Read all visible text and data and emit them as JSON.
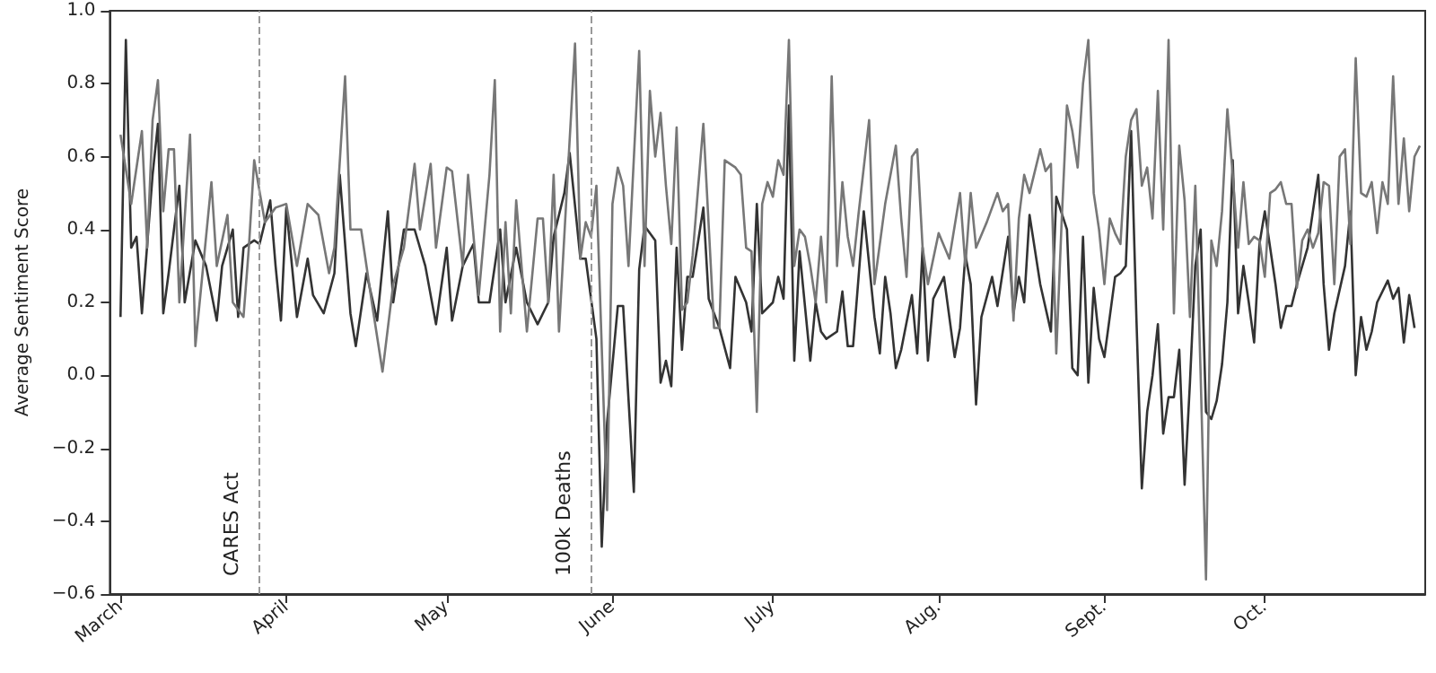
{
  "chart_data": {
    "type": "line",
    "ylabel": "Average Sentiment Score",
    "marker": "none",
    "xlim": [
      "--02-28",
      "--10-31"
    ],
    "xticks": [
      {
        "value": "--03-01",
        "label": "March"
      },
      {
        "value": "--04-01",
        "label": "April"
      },
      {
        "value": "--05-01",
        "label": "May"
      },
      {
        "value": "--06-01",
        "label": "June"
      },
      {
        "value": "--07-01",
        "label": "July"
      },
      {
        "value": "--08-01",
        "label": "Aug."
      },
      {
        "value": "--09-01",
        "label": "Sept."
      },
      {
        "value": "--10-01",
        "label": "Oct."
      }
    ],
    "ylim": [
      -0.6,
      1.0
    ],
    "yticks": [
      {
        "value": -0.6,
        "label": "−0.6"
      },
      {
        "value": -0.4,
        "label": "−0.4"
      },
      {
        "value": -0.2,
        "label": "−0.2"
      },
      {
        "value": 0,
        "label": "0.0"
      },
      {
        "value": 0.2,
        "label": "0.2"
      },
      {
        "value": 0.4,
        "label": "0.4"
      },
      {
        "value": 0.6,
        "label": "0.6"
      },
      {
        "value": 0.8,
        "label": "0.8"
      },
      {
        "value": 1.0,
        "label": "1.0"
      }
    ],
    "ref_lines": [
      {
        "axis": "x",
        "value": "--03-27",
        "label": "CARES Act",
        "color": "#999999",
        "line_style": "dashed"
      },
      {
        "axis": "x",
        "value": "--05-28",
        "label": "100k Deaths",
        "color": "#999999",
        "line_style": "dashed"
      }
    ],
    "series": [
      {
        "color": "#333333",
        "x": [
          "--03-01",
          "--03-02",
          "--03-03",
          "--03-04",
          "--03-05",
          "--03-07",
          "--03-08",
          "--03-09",
          "--03-10",
          "--03-12",
          "--03-13",
          "--03-15",
          "--03-17",
          "--03-19",
          "--03-20",
          "--03-22",
          "--03-23",
          "--03-24",
          "--03-26",
          "--03-27",
          "--03-29",
          "--03-30",
          "--03-31",
          "--04-01",
          "--04-03",
          "--04-05",
          "--04-06",
          "--04-08",
          "--04-10",
          "--04-11",
          "--04-13",
          "--04-14",
          "--04-16",
          "--04-18",
          "--04-20",
          "--04-21",
          "--04-23",
          "--04-25",
          "--04-27",
          "--04-29",
          "--05-01",
          "--05-02",
          "--05-04",
          "--05-05",
          "--05-06",
          "--05-07",
          "--05-09",
          "--05-11",
          "--05-12",
          "--05-14",
          "--05-16",
          "--05-18",
          "--05-20",
          "--05-21",
          "--05-23",
          "--05-24",
          "--05-26",
          "--05-27",
          "--05-29",
          "--05-30",
          "--05-31",
          "--06-02",
          "--06-03",
          "--06-05",
          "--06-06",
          "--06-07",
          "--06-09",
          "--06-10",
          "--06-11",
          "--06-12",
          "--06-13",
          "--06-14",
          "--06-15",
          "--06-16",
          "--06-18",
          "--06-19",
          "--06-21",
          "--06-23",
          "--06-24",
          "--06-26",
          "--06-27",
          "--06-28",
          "--06-29",
          "--07-01",
          "--07-02",
          "--07-03",
          "--07-04",
          "--07-05",
          "--07-06",
          "--07-08",
          "--07-09",
          "--07-10",
          "--07-11",
          "--07-13",
          "--07-14",
          "--07-15",
          "--07-16",
          "--07-18",
          "--07-20",
          "--07-21",
          "--07-22",
          "--07-23",
          "--07-24",
          "--07-25",
          "--07-27",
          "--07-28",
          "--07-29",
          "--07-30",
          "--07-31",
          "--08-02",
          "--08-04",
          "--08-05",
          "--08-06",
          "--08-07",
          "--08-08",
          "--08-09",
          "--08-11",
          "--08-12",
          "--08-14",
          "--08-15",
          "--08-16",
          "--08-17",
          "--08-18",
          "--08-20",
          "--08-22",
          "--08-23",
          "--08-25",
          "--08-26",
          "--08-27",
          "--08-28",
          "--08-29",
          "--08-30",
          "--08-31",
          "--09-01",
          "--09-03",
          "--09-04",
          "--09-05",
          "--09-06",
          "--09-07",
          "--09-08",
          "--09-09",
          "--09-10",
          "--09-11",
          "--09-12",
          "--09-13",
          "--09-14",
          "--09-15",
          "--09-16",
          "--09-17",
          "--09-18",
          "--09-19",
          "--09-20",
          "--09-21",
          "--09-22",
          "--09-23",
          "--09-24",
          "--09-25",
          "--09-26",
          "--09-27",
          "--09-28",
          "--09-29",
          "--09-30",
          "--10-01",
          "--10-03",
          "--10-04",
          "--10-05",
          "--10-06",
          "--10-07",
          "--10-08",
          "--10-09",
          "--10-11",
          "--10-12",
          "--10-13",
          "--10-14",
          "--10-16",
          "--10-17",
          "--10-18",
          "--10-19",
          "--10-20",
          "--10-21",
          "--10-22",
          "--10-24",
          "--10-25",
          "--10-26",
          "--10-27",
          "--10-28",
          "--10-29"
        ],
        "values": [
          0.16,
          0.92,
          0.35,
          0.38,
          0.17,
          0.55,
          0.69,
          0.17,
          0.28,
          0.52,
          0.2,
          0.37,
          0.3,
          0.15,
          0.3,
          0.4,
          0.16,
          0.35,
          0.37,
          0.36,
          0.48,
          0.3,
          0.15,
          0.46,
          0.16,
          0.32,
          0.22,
          0.17,
          0.28,
          0.55,
          0.17,
          0.08,
          0.28,
          0.15,
          0.45,
          0.2,
          0.4,
          0.4,
          0.3,
          0.14,
          0.35,
          0.15,
          0.3,
          0.33,
          0.36,
          0.2,
          0.2,
          0.4,
          0.2,
          0.35,
          0.2,
          0.14,
          0.2,
          0.38,
          0.5,
          0.61,
          0.32,
          0.32,
          0.1,
          -0.47,
          -0.13,
          0.19,
          0.19,
          -0.32,
          0.29,
          0.41,
          0.37,
          -0.02,
          0.04,
          -0.03,
          0.35,
          0.07,
          0.27,
          0.27,
          0.46,
          0.21,
          0.13,
          0.02,
          0.27,
          0.2,
          0.12,
          0.47,
          0.17,
          0.2,
          0.27,
          0.21,
          0.74,
          0.04,
          0.34,
          0.04,
          0.2,
          0.12,
          0.1,
          0.12,
          0.23,
          0.08,
          0.08,
          0.45,
          0.16,
          0.06,
          0.27,
          0.17,
          0.02,
          0.07,
          0.22,
          0.06,
          0.35,
          0.04,
          0.21,
          0.27,
          0.05,
          0.13,
          0.33,
          0.25,
          -0.08,
          0.16,
          0.27,
          0.19,
          0.38,
          0.17,
          0.27,
          0.2,
          0.44,
          0.25,
          0.12,
          0.49,
          0.4,
          0.02,
          0.0,
          0.38,
          -0.02,
          0.24,
          0.1,
          0.05,
          0.27,
          0.28,
          0.3,
          0.67,
          0.15,
          -0.31,
          -0.1,
          0.0,
          0.14,
          -0.16,
          -0.06,
          -0.06,
          0.07,
          -0.3,
          -0.02,
          0.3,
          0.4,
          -0.1,
          -0.12,
          -0.07,
          0.03,
          0.2,
          0.59,
          0.17,
          0.3,
          0.2,
          0.09,
          0.36,
          0.45,
          0.25,
          0.13,
          0.19,
          0.19,
          0.25,
          0.3,
          0.35,
          0.55,
          0.25,
          0.07,
          0.17,
          0.3,
          0.45,
          0.0,
          0.16,
          0.07,
          0.12,
          0.2,
          0.26,
          0.21,
          0.24,
          0.09,
          0.22,
          0.13
        ]
      },
      {
        "color": "#777777",
        "x": [
          "--03-01",
          "--03-03",
          "--03-05",
          "--03-06",
          "--03-07",
          "--03-08",
          "--03-09",
          "--03-10",
          "--03-11",
          "--03-12",
          "--03-14",
          "--03-15",
          "--03-17",
          "--03-18",
          "--03-19",
          "--03-21",
          "--03-22",
          "--03-24",
          "--03-25",
          "--03-26",
          "--03-28",
          "--03-30",
          "--04-01",
          "--04-03",
          "--04-05",
          "--04-07",
          "--04-09",
          "--04-10",
          "--04-12",
          "--04-13",
          "--04-15",
          "--04-17",
          "--04-19",
          "--04-21",
          "--04-23",
          "--04-25",
          "--04-26",
          "--04-28",
          "--04-29",
          "--05-01",
          "--05-02",
          "--05-04",
          "--05-05",
          "--05-07",
          "--05-09",
          "--05-10",
          "--05-11",
          "--05-12",
          "--05-13",
          "--05-14",
          "--05-16",
          "--05-18",
          "--05-19",
          "--05-20",
          "--05-21",
          "--05-22",
          "--05-25",
          "--05-26",
          "--05-27",
          "--05-28",
          "--05-29",
          "--05-31",
          "--06-01",
          "--06-02",
          "--06-03",
          "--06-04",
          "--06-06",
          "--06-07",
          "--06-08",
          "--06-09",
          "--06-10",
          "--06-11",
          "--06-12",
          "--06-13",
          "--06-14",
          "--06-15",
          "--06-16",
          "--06-18",
          "--06-20",
          "--06-21",
          "--06-22",
          "--06-24",
          "--06-25",
          "--06-26",
          "--06-27",
          "--06-28",
          "--06-29",
          "--06-30",
          "--07-01",
          "--07-02",
          "--07-03",
          "--07-04",
          "--07-05",
          "--07-06",
          "--07-07",
          "--07-08",
          "--07-09",
          "--07-10",
          "--07-11",
          "--07-12",
          "--07-13",
          "--07-14",
          "--07-15",
          "--07-16",
          "--07-17",
          "--07-19",
          "--07-20",
          "--07-22",
          "--07-23",
          "--07-24",
          "--07-25",
          "--07-26",
          "--07-27",
          "--07-28",
          "--07-29",
          "--07-30",
          "--08-01",
          "--08-03",
          "--08-05",
          "--08-06",
          "--08-07",
          "--08-08",
          "--08-10",
          "--08-12",
          "--08-13",
          "--08-14",
          "--08-15",
          "--08-16",
          "--08-17",
          "--08-18",
          "--08-20",
          "--08-21",
          "--08-22",
          "--08-23",
          "--08-24",
          "--08-25",
          "--08-26",
          "--08-27",
          "--08-28",
          "--08-29",
          "--08-30",
          "--08-31",
          "--09-01",
          "--09-02",
          "--09-03",
          "--09-04",
          "--09-05",
          "--09-06",
          "--09-07",
          "--09-08",
          "--09-09",
          "--09-10",
          "--09-11",
          "--09-12",
          "--09-13",
          "--09-14",
          "--09-15",
          "--09-16",
          "--09-17",
          "--09-18",
          "--09-19",
          "--09-20",
          "--09-21",
          "--09-22",
          "--09-23",
          "--09-24",
          "--09-25",
          "--09-26",
          "--09-27",
          "--09-28",
          "--09-29",
          "--09-30",
          "--10-01",
          "--10-02",
          "--10-03",
          "--10-04",
          "--10-05",
          "--10-06",
          "--10-07",
          "--10-08",
          "--10-09",
          "--10-10",
          "--10-11",
          "--10-12",
          "--10-13",
          "--10-14",
          "--10-15",
          "--10-16",
          "--10-17",
          "--10-18",
          "--10-19",
          "--10-20",
          "--10-21",
          "--10-22",
          "--10-23",
          "--10-24",
          "--10-25",
          "--10-26",
          "--10-27",
          "--10-28",
          "--10-29",
          "--10-30"
        ],
        "values": [
          0.66,
          0.47,
          0.67,
          0.35,
          0.7,
          0.81,
          0.45,
          0.62,
          0.62,
          0.2,
          0.66,
          0.08,
          0.38,
          0.53,
          0.3,
          0.44,
          0.2,
          0.16,
          0.35,
          0.59,
          0.42,
          0.46,
          0.47,
          0.3,
          0.47,
          0.44,
          0.28,
          0.35,
          0.82,
          0.4,
          0.4,
          0.2,
          0.01,
          0.25,
          0.35,
          0.58,
          0.4,
          0.58,
          0.35,
          0.57,
          0.56,
          0.3,
          0.55,
          0.22,
          0.55,
          0.81,
          0.12,
          0.42,
          0.17,
          0.48,
          0.12,
          0.43,
          0.43,
          0.2,
          0.55,
          0.12,
          0.91,
          0.32,
          0.42,
          0.38,
          0.52,
          -0.37,
          0.47,
          0.57,
          0.52,
          0.3,
          0.89,
          0.3,
          0.78,
          0.6,
          0.72,
          0.52,
          0.36,
          0.68,
          0.18,
          0.2,
          0.33,
          0.69,
          0.13,
          0.13,
          0.59,
          0.57,
          0.55,
          0.35,
          0.34,
          -0.1,
          0.47,
          0.53,
          0.49,
          0.59,
          0.55,
          0.92,
          0.3,
          0.4,
          0.38,
          0.3,
          0.2,
          0.38,
          0.2,
          0.82,
          0.3,
          0.53,
          0.38,
          0.3,
          0.44,
          0.7,
          0.25,
          0.47,
          0.55,
          0.63,
          0.43,
          0.27,
          0.6,
          0.62,
          0.35,
          0.25,
          0.39,
          0.32,
          0.5,
          0.3,
          0.5,
          0.35,
          0.42,
          0.5,
          0.45,
          0.47,
          0.15,
          0.43,
          0.55,
          0.5,
          0.62,
          0.56,
          0.58,
          0.06,
          0.42,
          0.74,
          0.67,
          0.57,
          0.8,
          0.92,
          0.5,
          0.4,
          0.25,
          0.43,
          0.39,
          0.36,
          0.6,
          0.7,
          0.73,
          0.52,
          0.57,
          0.43,
          0.78,
          0.4,
          0.92,
          0.17,
          0.63,
          0.48,
          0.16,
          0.52,
          0.0,
          -0.56,
          0.37,
          0.3,
          0.45,
          0.73,
          0.55,
          0.35,
          0.53,
          0.36,
          0.38,
          0.37,
          0.27,
          0.5,
          0.51,
          0.53,
          0.47,
          0.47,
          0.24,
          0.37,
          0.4,
          0.35,
          0.39,
          0.53,
          0.52,
          0.25,
          0.6,
          0.62,
          0.36,
          0.87,
          0.5,
          0.49,
          0.53,
          0.39,
          0.53,
          0.47,
          0.82,
          0.47,
          0.65,
          0.45,
          0.6,
          0.63
        ]
      }
    ]
  }
}
